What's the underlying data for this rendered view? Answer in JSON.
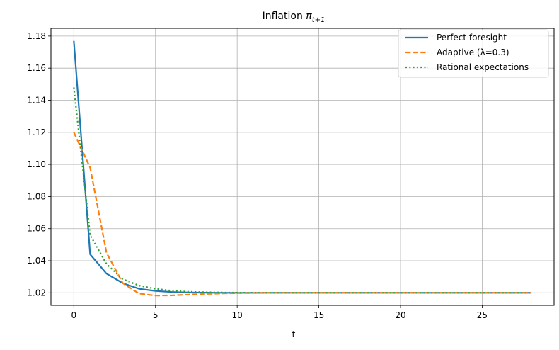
{
  "chart_data": {
    "type": "line",
    "title": {
      "main": "Inflation ",
      "symbol": "π",
      "subscript": "t+1"
    },
    "xlabel": "t",
    "ylabel": "",
    "xlim": [
      -1.4,
      29.4
    ],
    "ylim": [
      1.0122,
      1.1848
    ],
    "xticks": [
      0,
      5,
      10,
      15,
      20,
      25
    ],
    "xtick_labels": [
      "0",
      "5",
      "10",
      "15",
      "20",
      "25"
    ],
    "yticks": [
      1.02,
      1.04,
      1.06,
      1.08,
      1.1,
      1.12,
      1.14,
      1.16,
      1.18
    ],
    "ytick_labels": [
      "1.02",
      "1.04",
      "1.06",
      "1.08",
      "1.10",
      "1.12",
      "1.14",
      "1.16",
      "1.18"
    ],
    "grid": true,
    "legend_position": "top-right",
    "x": [
      0,
      1,
      2,
      3,
      4,
      5,
      6,
      7,
      8,
      9,
      10,
      11,
      12,
      13,
      14,
      15,
      16,
      17,
      18,
      19,
      20,
      21,
      22,
      23,
      24,
      25,
      26,
      27,
      28
    ],
    "series": [
      {
        "name": "Perfect foresight",
        "color": "#1f77b4",
        "style": "solid",
        "values": [
          1.177,
          1.044,
          1.032,
          1.026,
          1.0225,
          1.0212,
          1.0205,
          1.0202,
          1.0201,
          1.02,
          1.02,
          1.02,
          1.02,
          1.02,
          1.02,
          1.02,
          1.02,
          1.02,
          1.02,
          1.02,
          1.02,
          1.02,
          1.02,
          1.02,
          1.02,
          1.02,
          1.02,
          1.02,
          1.02
        ]
      },
      {
        "name": "Adaptive (λ=0.3)",
        "color": "#ff7f0e",
        "style": "dashed",
        "values": [
          1.12,
          1.098,
          1.045,
          1.026,
          1.0195,
          1.0183,
          1.0184,
          1.0189,
          1.0193,
          1.0196,
          1.0198,
          1.0199,
          1.02,
          1.02,
          1.02,
          1.02,
          1.02,
          1.02,
          1.02,
          1.02,
          1.02,
          1.02,
          1.02,
          1.02,
          1.02,
          1.02,
          1.02,
          1.02,
          1.02
        ]
      },
      {
        "name": "Rational expectations",
        "color": "#2ca02c",
        "style": "dotted",
        "values": [
          1.148,
          1.056,
          1.038,
          1.0285,
          1.0245,
          1.0225,
          1.0213,
          1.0207,
          1.0204,
          1.0202,
          1.0201,
          1.02,
          1.02,
          1.02,
          1.02,
          1.02,
          1.02,
          1.02,
          1.02,
          1.02,
          1.02,
          1.02,
          1.02,
          1.02,
          1.02,
          1.02,
          1.02,
          1.02,
          1.02
        ]
      }
    ]
  }
}
